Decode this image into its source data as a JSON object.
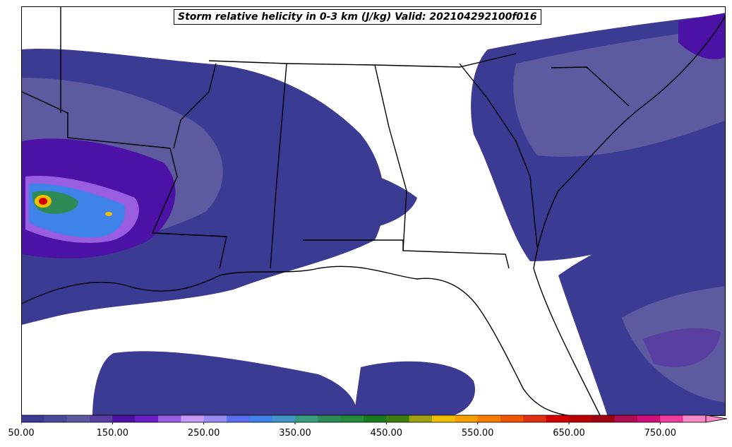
{
  "title": "Storm relative helicity in 0-3 km (J/kg) Valid: 202104292100f016",
  "colorbar": {
    "min": 50,
    "max": 800,
    "step": 25,
    "extend": "max",
    "tick_labels": [
      "50.00",
      "150.00",
      "250.00",
      "350.00",
      "450.00",
      "550.00",
      "650.00",
      "750.00"
    ],
    "colors": [
      "#3b3b94",
      "#4a4a9c",
      "#5d5aa0",
      "#5a3fa3",
      "#4c12a6",
      "#6a1ec9",
      "#9a5ce0",
      "#c79af5",
      "#9b8cf5",
      "#5c6ef0",
      "#3f82e8",
      "#4295c9",
      "#3a9c7e",
      "#2e8b57",
      "#238a3c",
      "#197a1e",
      "#3e7d0f",
      "#a0a012",
      "#f0c000",
      "#f5a000",
      "#f57d00",
      "#f05500",
      "#e03010",
      "#d20000",
      "#b80000",
      "#a00010",
      "#b00c50",
      "#d0107a",
      "#f03c9c",
      "#f78ac4"
    ]
  },
  "map": {
    "region": "Southeastern United States",
    "background": "#ffffff",
    "line_color": "#000000",
    "field": "storm relative helicity 0-3 km"
  }
}
